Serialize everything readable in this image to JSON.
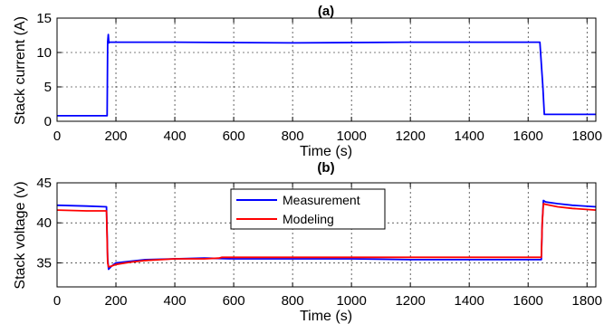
{
  "chart_data": [
    {
      "type": "line",
      "title": "(a)",
      "xlabel": "Time (s)",
      "ylabel": "Stack current (A)",
      "xlim": [
        0,
        1830
      ],
      "ylim": [
        0,
        15
      ],
      "xticks": [
        0,
        200,
        400,
        600,
        800,
        1000,
        1200,
        1400,
        1600,
        1800
      ],
      "yticks": [
        0,
        5,
        10,
        15
      ],
      "grid": true,
      "legend": false,
      "series": [
        {
          "color": "#0000ff",
          "x": [
            0,
            160,
            170,
            172,
            174,
            176,
            178,
            400,
            800,
            1200,
            1500,
            1640,
            1650,
            1655,
            1660,
            1700,
            1830
          ],
          "y": [
            0.8,
            0.8,
            0.8,
            11.5,
            12.6,
            11.4,
            11.5,
            11.5,
            11.4,
            11.5,
            11.5,
            11.5,
            5.0,
            1.0,
            1.0,
            1.0,
            1.0
          ]
        }
      ]
    },
    {
      "type": "line",
      "title": "(b)",
      "xlabel": "Time (s)",
      "ylabel": "Stack voltage (v)",
      "xlim": [
        0,
        1830
      ],
      "ylim": [
        32,
        45
      ],
      "xticks": [
        0,
        200,
        400,
        600,
        800,
        1000,
        1200,
        1400,
        1600,
        1800
      ],
      "yticks": [
        35,
        40,
        45
      ],
      "grid": true,
      "legend": {
        "placement": "top-center",
        "entries": [
          "Measurement",
          "Modeling"
        ]
      },
      "series": [
        {
          "name": "Measurement",
          "color": "#0000ff",
          "x": [
            0,
            100,
            168,
            172,
            175,
            185,
            200,
            250,
            300,
            400,
            500,
            600,
            800,
            1000,
            1200,
            1400,
            1600,
            1645,
            1648,
            1652,
            1660,
            1700,
            1750,
            1830
          ],
          "y": [
            42.2,
            42.1,
            42.0,
            35.5,
            34.2,
            34.6,
            35.0,
            35.2,
            35.4,
            35.5,
            35.6,
            35.5,
            35.5,
            35.5,
            35.4,
            35.4,
            35.4,
            35.4,
            40.0,
            42.8,
            42.6,
            42.4,
            42.2,
            42.0
          ]
        },
        {
          "name": "Modeling",
          "color": "#ff0000",
          "x": [
            0,
            100,
            168,
            172,
            175,
            185,
            200,
            250,
            300,
            400,
            500,
            550,
            560,
            800,
            1000,
            1200,
            1400,
            1600,
            1645,
            1648,
            1652,
            1660,
            1700,
            1750,
            1830
          ],
          "y": [
            41.6,
            41.5,
            41.5,
            35.0,
            34.5,
            34.6,
            34.8,
            35.1,
            35.3,
            35.5,
            35.5,
            35.6,
            35.7,
            35.7,
            35.7,
            35.7,
            35.7,
            35.7,
            35.7,
            40.0,
            42.4,
            42.3,
            42.0,
            41.8,
            41.6
          ]
        }
      ]
    }
  ]
}
